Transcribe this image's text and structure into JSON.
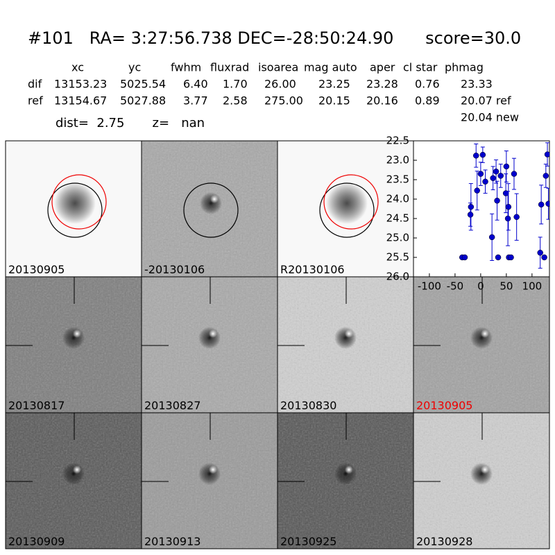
{
  "header": {
    "title": "#101   RA= 3:27:56.738 DEC=-28:50:24.90      score=30.0",
    "columns": [
      "xc",
      "yc",
      "fwhm",
      "fluxrad",
      "isoarea",
      "mag auto",
      "aper",
      "cl star",
      "phmag"
    ],
    "rows": [
      [
        "dif",
        "13153.23",
        "5025.54",
        "6.40",
        "1.70",
        "26.00",
        "23.25",
        "23.28",
        "0.76",
        "23.33"
      ],
      [
        "ref",
        "13154.67",
        "5027.88",
        "3.77",
        "2.58",
        "275.00",
        "20.15",
        "20.16",
        "0.89",
        "20.07 ref"
      ]
    ],
    "extra": "20.04 new",
    "dist": "dist=  2.75       z=   nan"
  },
  "panels": [
    "20130905",
    "-20130106",
    "R20130106",
    "20130817",
    "20130827",
    "20130830",
    "20130905",
    "20130909",
    "20130913",
    "20130925",
    "20130928"
  ],
  "chart_data": {
    "type": "scatter",
    "color": "#0000cc",
    "x": [
      -36,
      -31,
      -20,
      -19,
      -9,
      -7,
      0,
      4,
      9,
      22,
      24,
      30,
      32,
      34,
      39,
      49,
      50,
      53,
      54,
      55,
      59,
      65,
      70,
      116,
      118,
      124,
      127,
      130,
      132
    ],
    "values": [
      25.5,
      25.5,
      24.4,
      24.2,
      22.88,
      23.78,
      23.35,
      22.86,
      23.55,
      24.98,
      23.46,
      23.29,
      24.04,
      25.5,
      23.4,
      23.85,
      23.16,
      24.5,
      24.2,
      25.5,
      25.5,
      23.35,
      24.46,
      25.38,
      24.14,
      25.5,
      23.4,
      22.85,
      24.12
    ],
    "errors": [
      0.03,
      0.03,
      0.3,
      0.6,
      0.3,
      0.5,
      0.3,
      0.2,
      0.3,
      0.6,
      0.3,
      0.3,
      0.5,
      0.03,
      0.3,
      0.5,
      0.4,
      0.7,
      0.6,
      0.03,
      0.03,
      0.4,
      0.6,
      0.4,
      0.5,
      0.03,
      0.3,
      0.3,
      0.4
    ],
    "xlim": [
      -131,
      134
    ],
    "xticks": [
      -100,
      -50,
      0,
      50,
      100
    ],
    "ylim": [
      26,
      22.5
    ],
    "yticks": [
      {
        "value": 22.5,
        "label": "22.5"
      },
      {
        "value": 23,
        "label": "23.0"
      },
      {
        "value": 23.5,
        "label": "23.5"
      },
      {
        "value": 24,
        "label": "24.0"
      },
      {
        "value": 24.5,
        "label": "24.5"
      },
      {
        "value": 25,
        "label": "25.0"
      },
      {
        "value": 25.5,
        "label": "25.5"
      },
      {
        "value": 26,
        "label": "26.0"
      }
    ]
  }
}
